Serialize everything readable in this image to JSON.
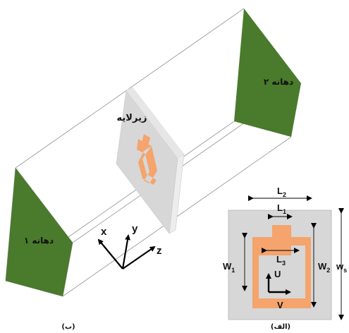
{
  "panel_b": {
    "caption": "(ب)",
    "port1_label": "دهانه ۱",
    "port2_label": "دهانه ۲",
    "substrate_label": "زیرلایه",
    "axes": {
      "x": "x",
      "y": "y",
      "z": "z"
    }
  },
  "panel_a": {
    "caption": "(الف)",
    "dims": {
      "L2": {
        "main": "L",
        "sub": "2"
      },
      "L1": {
        "main": "L",
        "sub": "1"
      },
      "L3": {
        "main": "L",
        "sub": "3"
      },
      "W1": {
        "main": "W",
        "sub": "1"
      },
      "W2": {
        "main": "W",
        "sub": "2"
      },
      "Ws": {
        "main": "w",
        "sub": "s"
      }
    },
    "vectors": {
      "U": "U",
      "V": "V"
    }
  },
  "colors": {
    "port_green": "#4a7a2c",
    "resonator_orange": "#f4a46c",
    "substrate_gray": "#d7d7d7",
    "waveguide_line": "#9a9a9a"
  }
}
